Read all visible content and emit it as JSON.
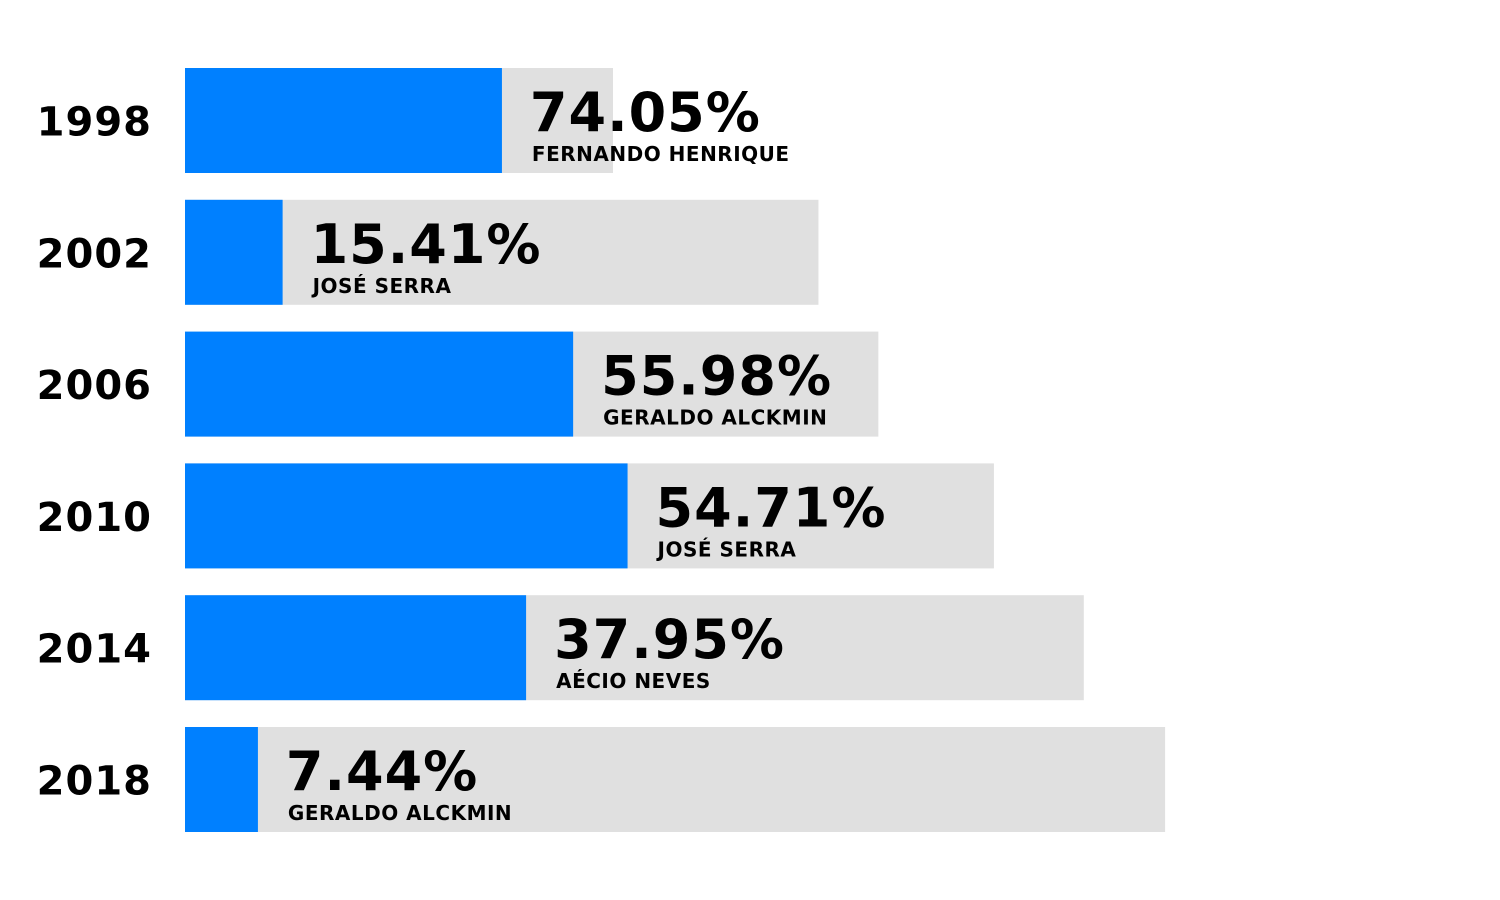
{
  "colors": {
    "share": "#0080ff",
    "remainder": "#e0e0e0",
    "text": "#000000"
  },
  "chart_data": {
    "type": "bar",
    "orientation": "horizontal",
    "categories": [
      "1998",
      "2002",
      "2006",
      "2010",
      "2014",
      "2018"
    ],
    "series": [
      {
        "values": [
          74.05,
          15.41,
          55.98,
          54.71,
          37.95,
          7.44
        ],
        "value_labels": [
          "74.05%",
          "15.41%",
          "55.98%",
          "54.71%",
          "37.95%",
          "7.44%"
        ]
      }
    ],
    "candidates": [
      "FERNANDO HENRIQUE",
      "JOSÉ SERRA",
      "GERALDO ALCKMIN",
      "JOSÉ SERRA",
      "AÉCIO NEVES",
      "GERALDO ALCKMIN"
    ],
    "grey_track_relative_lengths": [
      1.0,
      1.48,
      1.62,
      1.89,
      2.1,
      2.29
    ],
    "title": "",
    "xlabel": "",
    "ylabel": "",
    "grid": false,
    "legend": "none"
  }
}
